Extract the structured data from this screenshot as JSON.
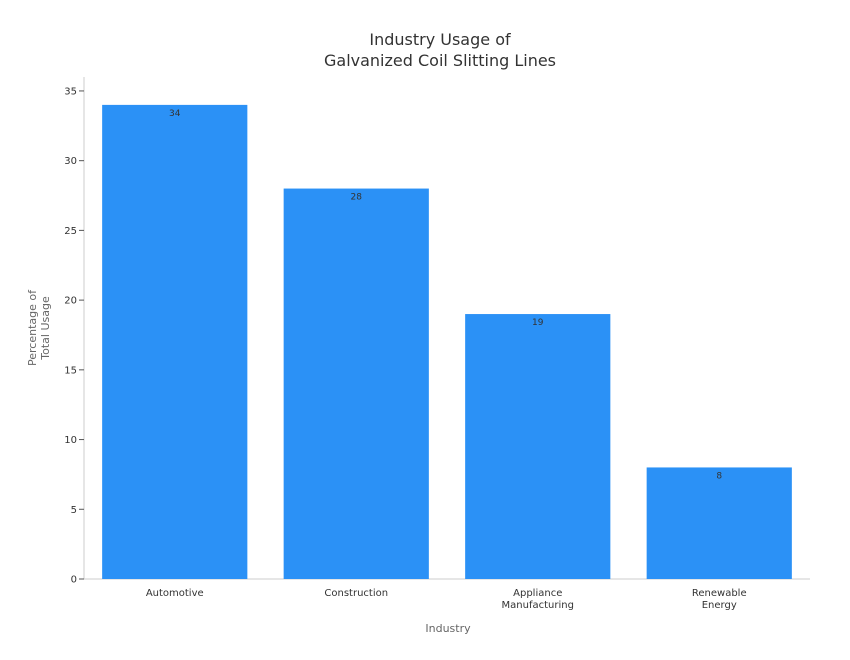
{
  "chart_data": {
    "type": "bar",
    "title_lines": [
      "Industry Usage of",
      "Galvanized Coil Slitting Lines"
    ],
    "xlabel": "Industry",
    "ylabel_lines": [
      "Percentage of",
      "Total Usage"
    ],
    "categories": [
      [
        "Automotive"
      ],
      [
        "Construction"
      ],
      [
        "Appliance",
        "Manufacturing"
      ],
      [
        "Renewable",
        "Energy"
      ]
    ],
    "values": [
      34,
      28,
      19,
      8
    ],
    "data_labels": [
      "34",
      "28",
      "19",
      "8"
    ],
    "ylim": [
      0,
      36
    ],
    "yticks": [
      0,
      5,
      10,
      15,
      20,
      25,
      30,
      35
    ],
    "grid": false,
    "legend": "none",
    "bar_color": "#2B91F6",
    "axis_color": "#cccccc"
  }
}
